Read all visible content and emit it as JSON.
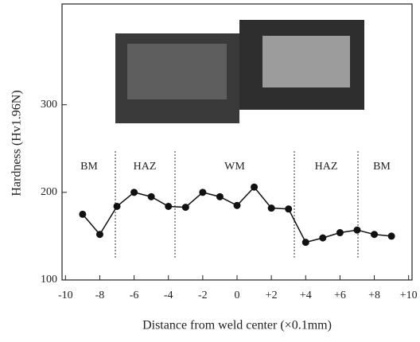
{
  "chart_data": {
    "type": "line",
    "x_label": "Distance from weld center (×0.1mm)",
    "y_label": "Hardness (Hv1.96N)",
    "x": [
      -9,
      -8,
      -7,
      -6,
      -5,
      -4,
      -3,
      -2,
      -1,
      0,
      1,
      2,
      3,
      4,
      5,
      6,
      7,
      8,
      9
    ],
    "values": [
      175,
      152,
      184,
      200,
      195,
      184,
      183,
      200,
      195,
      185,
      206,
      182,
      181,
      143,
      148,
      154,
      157,
      152,
      150
    ],
    "color": "#111111",
    "xlim": [
      -10.2,
      10.2
    ],
    "ylim": [
      100,
      415
    ],
    "xticks": [
      -10,
      -8,
      -6,
      -4,
      -2,
      0,
      {
        "value": 2,
        "label": "+2"
      },
      {
        "value": 4,
        "label": "+4"
      },
      {
        "value": 6,
        "label": "+6"
      },
      {
        "value": 8,
        "label": "+8"
      },
      {
        "value": 10,
        "label": "+10"
      }
    ],
    "yticks": [
      100,
      200,
      300
    ],
    "zones": [
      "BM",
      "HAZ",
      "WM",
      "HAZ",
      "BM"
    ]
  }
}
